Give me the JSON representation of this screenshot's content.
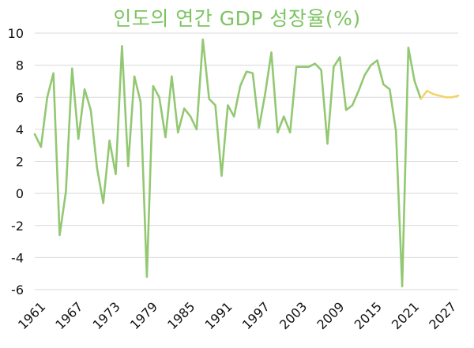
{
  "chart_data": {
    "type": "line",
    "title": "인도의 연간 GDP 성장율(%)",
    "xlabel": "",
    "ylabel": "",
    "ylim": [
      -6,
      10
    ],
    "yticks": [
      10,
      8,
      6,
      4,
      2,
      0,
      -2,
      -4,
      -6
    ],
    "xlim": [
      1961,
      2029
    ],
    "xticks": [
      1961,
      1967,
      1973,
      1979,
      1985,
      1991,
      1997,
      2003,
      2009,
      2015,
      2021,
      2027
    ],
    "grid": true,
    "legend": "none",
    "series": [
      {
        "color": "#93c873",
        "x": [
          1961,
          1962,
          1963,
          1964,
          1965,
          1966,
          1967,
          1968,
          1969,
          1970,
          1971,
          1972,
          1973,
          1974,
          1975,
          1976,
          1977,
          1978,
          1979,
          1980,
          1981,
          1982,
          1983,
          1984,
          1985,
          1986,
          1987,
          1988,
          1989,
          1990,
          1991,
          1992,
          1993,
          1994,
          1995,
          1996,
          1997,
          1998,
          1999,
          2000,
          2001,
          2002,
          2003,
          2004,
          2005,
          2006,
          2007,
          2008,
          2009,
          2010,
          2011,
          2012,
          2013,
          2014,
          2015,
          2016,
          2017,
          2018,
          2019,
          2020,
          2021,
          2022,
          2023
        ],
        "values": [
          3.7,
          2.9,
          6.0,
          7.5,
          -2.6,
          0.1,
          7.8,
          3.4,
          6.5,
          5.2,
          1.6,
          -0.6,
          3.3,
          1.2,
          9.2,
          1.7,
          7.3,
          5.7,
          -5.2,
          6.7,
          6.0,
          3.5,
          7.3,
          3.8,
          5.3,
          4.8,
          4.0,
          9.6,
          5.9,
          5.5,
          1.1,
          5.5,
          4.8,
          6.7,
          7.6,
          7.5,
          4.1,
          6.2,
          8.8,
          3.8,
          4.8,
          3.8,
          7.9,
          7.9,
          7.9,
          8.1,
          7.7,
          3.1,
          7.9,
          8.5,
          5.2,
          5.5,
          6.4,
          7.4,
          8.0,
          8.3,
          6.8,
          6.5,
          3.9,
          -5.8,
          9.1,
          7.0,
          5.9
        ]
      },
      {
        "color": "#f5d36b",
        "x": [
          2023,
          2024,
          2025,
          2026,
          2027,
          2028,
          2029
        ],
        "values": [
          5.9,
          6.4,
          6.2,
          6.1,
          6.0,
          6.0,
          6.1
        ]
      }
    ]
  }
}
